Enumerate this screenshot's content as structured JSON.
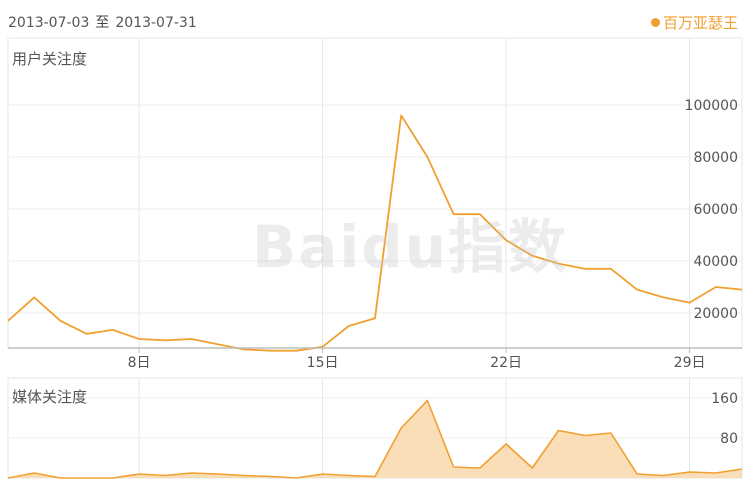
{
  "header": {
    "date_start": "2013-07-03",
    "date_sep": "至",
    "date_end": "2013-07-31",
    "legend_label": "百万亚瑟王",
    "legend_color": "#f0a030"
  },
  "watermark": {
    "text": "Baidu指数"
  },
  "chart_data": [
    {
      "type": "line",
      "title": "用户关注度",
      "x_dates": [
        "2013-07-03",
        "2013-07-04",
        "2013-07-05",
        "2013-07-06",
        "2013-07-07",
        "2013-07-08",
        "2013-07-09",
        "2013-07-10",
        "2013-07-11",
        "2013-07-12",
        "2013-07-13",
        "2013-07-14",
        "2013-07-15",
        "2013-07-16",
        "2013-07-17",
        "2013-07-18",
        "2013-07-19",
        "2013-07-20",
        "2013-07-21",
        "2013-07-22",
        "2013-07-23",
        "2013-07-24",
        "2013-07-25",
        "2013-07-26",
        "2013-07-27",
        "2013-07-28",
        "2013-07-29",
        "2013-07-30",
        "2013-07-31"
      ],
      "x_tick_labels": [
        "8日",
        "15日",
        "22日",
        "29日"
      ],
      "x_tick_dates": [
        "2013-07-08",
        "2013-07-15",
        "2013-07-22",
        "2013-07-29"
      ],
      "series": [
        {
          "values": [
            17000,
            26000,
            17000,
            12000,
            13500,
            10000,
            9500,
            10000,
            8000,
            6000,
            5500,
            5500,
            7000,
            15000,
            18000,
            96000,
            80000,
            58000,
            58000,
            48000,
            42000,
            39000,
            37000,
            37000,
            29000,
            26000,
            24000,
            30000,
            29000
          ]
        }
      ],
      "y_ticks": [
        20000,
        40000,
        60000,
        80000,
        100000
      ],
      "ylim": [
        0,
        100000
      ],
      "color": "#f0a030",
      "grid": true
    },
    {
      "type": "area",
      "title": "媒体关注度",
      "x_dates": [
        "2013-07-03",
        "2013-07-04",
        "2013-07-05",
        "2013-07-06",
        "2013-07-07",
        "2013-07-08",
        "2013-07-09",
        "2013-07-10",
        "2013-07-11",
        "2013-07-12",
        "2013-07-13",
        "2013-07-14",
        "2013-07-15",
        "2013-07-16",
        "2013-07-17",
        "2013-07-18",
        "2013-07-19",
        "2013-07-20",
        "2013-07-21",
        "2013-07-22",
        "2013-07-23",
        "2013-07-24",
        "2013-07-25",
        "2013-07-26",
        "2013-07-27",
        "2013-07-28",
        "2013-07-29",
        "2013-07-30",
        "2013-07-31"
      ],
      "series": [
        {
          "values": [
            0,
            10,
            0,
            0,
            0,
            8,
            5,
            10,
            8,
            5,
            3,
            0,
            8,
            5,
            3,
            100,
            155,
            22,
            20,
            68,
            20,
            95,
            85,
            90,
            8,
            5,
            12,
            10,
            18
          ]
        }
      ],
      "y_ticks": [
        80,
        160
      ],
      "ylim": [
        0,
        160
      ],
      "color": "#f0a030",
      "fill_color": "#f8d8ac",
      "grid": true
    }
  ]
}
